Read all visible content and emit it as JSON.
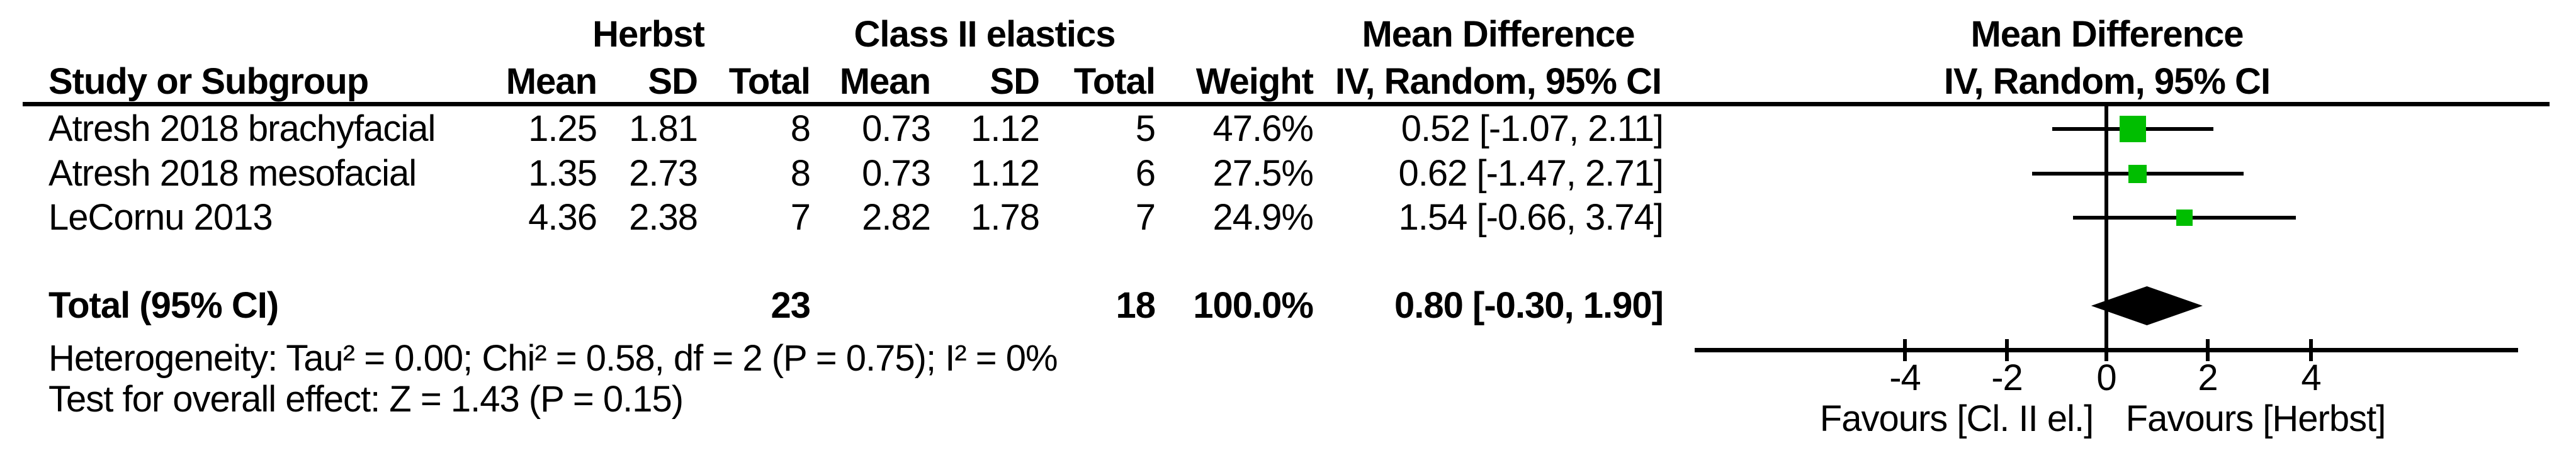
{
  "colors": {
    "marker_green": "#00BE00",
    "ink": "#000000"
  },
  "table": {
    "group_headers": {
      "herbst": "Herbst",
      "class_ii_elastics": "Class II elastics",
      "mean_difference": "Mean Difference"
    },
    "columns": {
      "study": "Study or Subgroup",
      "herbst_mean": "Mean",
      "herbst_sd": "SD",
      "herbst_total": "Total",
      "classii_mean": "Mean",
      "classii_sd": "SD",
      "classii_total": "Total",
      "weight": "Weight",
      "ci": "IV, Random, 95% CI"
    },
    "rows": [
      {
        "study": "Atresh 2018 brachyfacial",
        "herbst_mean": "1.25",
        "herbst_sd": "1.81",
        "herbst_total": "8",
        "classii_mean": "0.73",
        "classii_sd": "1.12",
        "classii_total": "5",
        "weight": "47.6%",
        "ci": "0.52 [-1.07, 2.11]"
      },
      {
        "study": "Atresh 2018 mesofacial",
        "herbst_mean": "1.35",
        "herbst_sd": "2.73",
        "herbst_total": "8",
        "classii_mean": "0.73",
        "classii_sd": "1.12",
        "classii_total": "6",
        "weight": "27.5%",
        "ci": "0.62 [-1.47, 2.71]"
      },
      {
        "study": "LeCornu 2013",
        "herbst_mean": "4.36",
        "herbst_sd": "2.38",
        "herbst_total": "7",
        "classii_mean": "2.82",
        "classii_sd": "1.78",
        "classii_total": "7",
        "weight": "24.9%",
        "ci": "1.54 [-0.66, 3.74]"
      }
    ],
    "total_row": {
      "label": "Total (95% CI)",
      "herbst_total": "23",
      "classii_total": "18",
      "weight": "100.0%",
      "ci": "0.80 [-0.30, 1.90]"
    },
    "heterogeneity": "Heterogeneity: Tau² = 0.00; Chi² = 0.58, df = 2 (P = 0.75); I² = 0%",
    "overall_effect": "Test for overall effect: Z = 1.43 (P = 0.15)"
  },
  "plot": {
    "header_line1": "Mean Difference",
    "header_line2": "IV, Random, 95% CI",
    "tick_labels": [
      "-4",
      "-2",
      "0",
      "2",
      "4"
    ],
    "favours_left": "Favours [Cl. II el.]",
    "favours_right": "Favours [Herbst]"
  },
  "chart_data": {
    "type": "scatter",
    "subtype": "forest_plot",
    "title": "Mean Difference, IV, Random, 95% CI",
    "studies": [
      {
        "name": "Atresh 2018 brachyfacial",
        "md": 0.52,
        "ci_low": -1.07,
        "ci_high": 2.11,
        "weight_pct": 47.6
      },
      {
        "name": "Atresh 2018 mesofacial",
        "md": 0.62,
        "ci_low": -1.47,
        "ci_high": 2.71,
        "weight_pct": 27.5
      },
      {
        "name": "LeCornu 2013",
        "md": 1.54,
        "ci_low": -0.66,
        "ci_high": 3.74,
        "weight_pct": 24.9
      }
    ],
    "total": {
      "name": "Total (95% CI)",
      "md": 0.8,
      "ci_low": -0.3,
      "ci_high": 1.9,
      "weight_pct": 100.0
    },
    "heterogeneity": {
      "tau2": 0.0,
      "chi2": 0.58,
      "df": 2,
      "p": 0.75,
      "i2_pct": 0
    },
    "overall_effect": {
      "z": 1.43,
      "p": 0.15
    },
    "x_ticks": [
      -4,
      -2,
      0,
      2,
      4
    ],
    "xlim": [
      -8.1,
      8.1
    ],
    "grid": false,
    "xlabel_left": "Favours [Cl. II el.]",
    "xlabel_right": "Favours [Herbst]"
  }
}
